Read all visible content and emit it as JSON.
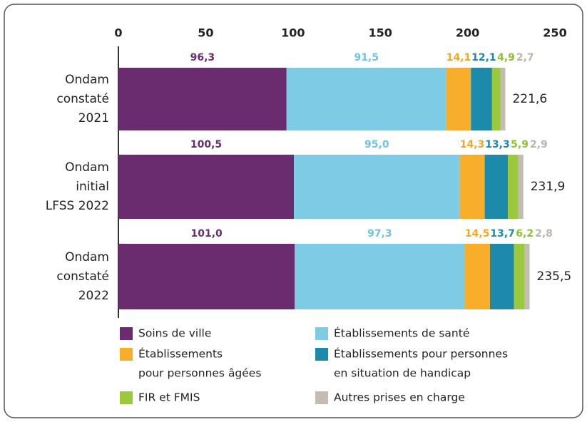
{
  "chart_data": {
    "type": "stacked_hbar",
    "categories": [
      [
        "Ondam",
        "constaté",
        "2021"
      ],
      [
        "Ondam",
        "initial",
        "LFSS 2022"
      ],
      [
        "Ondam",
        "constaté",
        "2022"
      ]
    ],
    "series": [
      {
        "name": [
          "Soins de ville"
        ],
        "color": "#6b2c6f",
        "label_color": "#6b2c6f",
        "values": [
          96.3,
          100.5,
          101.0
        ],
        "value_labels": [
          "96,3",
          "100,5",
          "101,0"
        ]
      },
      {
        "name": [
          "Établissements de santé"
        ],
        "color": "#7ecbe5",
        "label_color": "#6fc4e3",
        "values": [
          91.5,
          95.0,
          97.3
        ],
        "value_labels": [
          "91,5",
          "95,0",
          "97,3"
        ]
      },
      {
        "name": [
          "Établissements",
          "pour personnes âgées"
        ],
        "color": "#f8ad2b",
        "label_color": "#f5a623",
        "values": [
          14.1,
          14.3,
          14.5
        ],
        "value_labels": [
          "14,1",
          "14,3",
          "14,5"
        ]
      },
      {
        "name": [
          "Établissements pour personnes",
          "en situation de handicap"
        ],
        "color": "#1e8aab",
        "label_color": "#1e8aab",
        "values": [
          12.1,
          13.3,
          13.7
        ],
        "value_labels": [
          "12,1",
          "13,3",
          "13,7"
        ]
      },
      {
        "name": [
          "FIR et FMIS"
        ],
        "color": "#9cc83c",
        "label_color": "#8fc031",
        "values": [
          4.9,
          5.9,
          6.2
        ],
        "value_labels": [
          "4,9",
          "5,9",
          "6,2"
        ]
      },
      {
        "name": [
          "Autres prises en charge"
        ],
        "color": "#c4bbb2",
        "label_color": "#bdb4ab",
        "values": [
          2.7,
          2.9,
          2.8
        ],
        "value_labels": [
          "2,7",
          "2,9",
          "2,8"
        ]
      }
    ],
    "totals": [
      221.6,
      231.9,
      235.5
    ],
    "total_labels": [
      "221,6",
      "231,9",
      "235,5"
    ],
    "xlim": [
      0,
      250
    ],
    "xticks": [
      0,
      50,
      100,
      150,
      200,
      250
    ]
  }
}
